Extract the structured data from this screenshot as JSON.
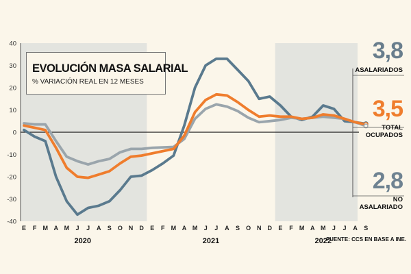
{
  "header": {
    "title": "EVOLUCIÓN MASA SALARIAL",
    "subtitle": "% VARIACIÓN REAL EN 12 MESES"
  },
  "source": "FUENTE: CCS EN BASE A INE.",
  "callouts": [
    {
      "series": "Asalariados",
      "value": "3,8",
      "label_lines": [
        "ASALARIADOS"
      ]
    },
    {
      "series": "Total ocupados",
      "value": "3,5",
      "label_lines": [
        "TOTAL",
        "OCUPADOS"
      ]
    },
    {
      "series": "No asalariados",
      "value": "2,8",
      "label_lines": [
        "NO",
        "ASALARIADO"
      ]
    }
  ],
  "colors": {
    "asalariados": "#5a7a8e",
    "total": "#ef7d2d",
    "no_asalariados": "#9aa5ac",
    "shade": "#e3e4df",
    "background": "#fbf6ea",
    "value_asalariados": "#687d8c",
    "value_total": "#ef7d2d",
    "value_no_asalariados": "#6e8291"
  },
  "chart_data": {
    "type": "line",
    "title": "EVOLUCIÓN MASA SALARIAL",
    "subtitle": "% VARIACIÓN REAL EN 12 MESES",
    "ylabel": "% variación real en 12 meses",
    "ylim": [
      -40,
      40
    ],
    "yticks": [
      40,
      30,
      20,
      10,
      0,
      -10,
      -20,
      -30,
      -40
    ],
    "grid": false,
    "month_letters": [
      "E",
      "F",
      "M",
      "A",
      "M",
      "J",
      "J",
      "A",
      "S",
      "O",
      "N",
      "D",
      "E",
      "F",
      "M",
      "A",
      "M",
      "J",
      "J",
      "A",
      "S",
      "O",
      "N",
      "D",
      "E",
      "F",
      "M",
      "A",
      "M",
      "J",
      "J",
      "A",
      "S"
    ],
    "years": [
      {
        "label": "2020",
        "start": 0,
        "end": 11
      },
      {
        "label": "2021",
        "start": 12,
        "end": 23
      },
      {
        "label": "2022",
        "start": 24,
        "end": 32
      }
    ],
    "shaded_years": [
      "2020",
      "2022"
    ],
    "series": [
      {
        "name": "Asalariados",
        "color": "#5a7a8e",
        "values": [
          1,
          -2,
          -4,
          -20,
          -31,
          -37,
          -34,
          -33,
          -31,
          -26,
          -20,
          -19.5,
          -17,
          -14,
          -10.5,
          3,
          20,
          30,
          33,
          33,
          28,
          23,
          15,
          16,
          12,
          7,
          5.5,
          7,
          12,
          10.5,
          5,
          4.5,
          3.8
        ]
      },
      {
        "name": "Total ocupados",
        "color": "#ef7d2d",
        "values": [
          3,
          2,
          1,
          -7,
          -16,
          -20,
          -20.5,
          -19,
          -17.5,
          -14,
          -11,
          -10.5,
          -9.5,
          -8.5,
          -7.5,
          -1.5,
          9,
          14.5,
          17,
          16.5,
          13.5,
          10,
          7,
          7.5,
          7,
          7,
          6,
          6.5,
          8,
          7.5,
          6,
          4.5,
          3.5
        ]
      },
      {
        "name": "No asalariados",
        "color": "#9aa5ac",
        "values": [
          4,
          3.5,
          3.5,
          -4,
          -11,
          -13,
          -14.5,
          -13,
          -12,
          -9,
          -7.5,
          -7.5,
          -7,
          -6.8,
          -6.6,
          -3,
          6,
          10.5,
          12.5,
          11.5,
          9.5,
          6.5,
          4.5,
          5,
          5.5,
          6.5,
          6,
          6.5,
          7,
          6.5,
          6,
          4.5,
          2.8
        ]
      }
    ]
  }
}
